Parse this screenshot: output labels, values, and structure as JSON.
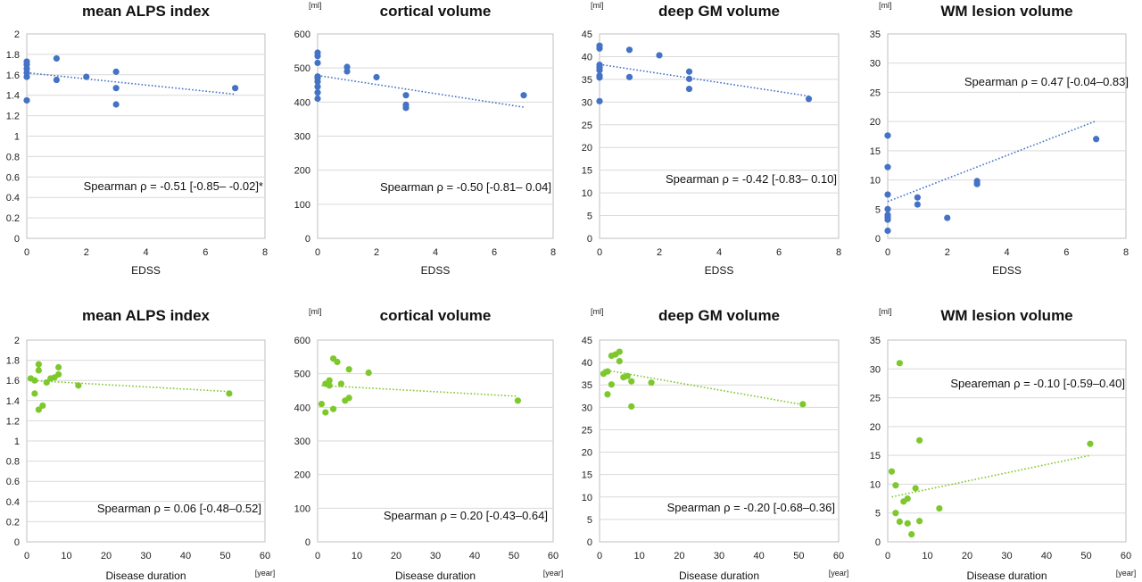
{
  "colors": {
    "edss": "#4472C4",
    "duration": "#7DC82C"
  },
  "chart_data": [
    {
      "type": "scatter",
      "title": "mean ALPS index",
      "unit": "",
      "xlabel": "EDSS",
      "xunit": "",
      "xlim": [
        0,
        8
      ],
      "xticks": [
        "0",
        "2",
        "4",
        "6",
        "8"
      ],
      "ylim": [
        0,
        2
      ],
      "yticks": [
        "0",
        "0.2",
        "0.4",
        "0.6",
        "0.8",
        "1",
        "1.2",
        "1.4",
        "1.6",
        "1.8",
        "2"
      ],
      "annotation": "Spearman ρ = -0.51 [-0.85– -0.02]*",
      "color": "edss",
      "x": [
        0,
        0,
        0,
        0,
        0,
        0,
        1,
        1,
        2,
        3,
        3,
        3,
        7
      ],
      "y": [
        1.35,
        1.58,
        1.62,
        1.66,
        1.7,
        1.73,
        1.55,
        1.76,
        1.58,
        1.31,
        1.47,
        1.63,
        1.47
      ],
      "trend": [
        [
          0,
          1.62
        ],
        [
          7,
          1.41
        ]
      ]
    },
    {
      "type": "scatter",
      "title": "cortical volume",
      "unit": "[ml]",
      "xlabel": "EDSS",
      "xunit": "",
      "xlim": [
        0,
        8
      ],
      "xticks": [
        "0",
        "2",
        "4",
        "6",
        "8"
      ],
      "ylim": [
        0,
        600
      ],
      "yticks": [
        "0",
        "100",
        "200",
        "300",
        "400",
        "500",
        "600"
      ],
      "annotation": "Spearman ρ = -0.50 [-0.81– 0.04]",
      "color": "edss",
      "x": [
        0,
        0,
        0,
        0,
        0,
        0,
        0,
        0,
        0,
        1,
        1,
        2,
        3,
        3,
        3,
        7
      ],
      "y": [
        410,
        428,
        445,
        460,
        470,
        475,
        515,
        535,
        545,
        490,
        503,
        473,
        420,
        392,
        383,
        420
      ],
      "trend": [
        [
          0,
          478
        ],
        [
          7,
          385
        ]
      ]
    },
    {
      "type": "scatter",
      "title": "deep GM volume",
      "unit": "[ml]",
      "xlabel": "EDSS",
      "xunit": "",
      "xlim": [
        0,
        8
      ],
      "xticks": [
        "0",
        "2",
        "4",
        "6",
        "8"
      ],
      "ylim": [
        0,
        45
      ],
      "yticks": [
        "0",
        "5",
        "10",
        "15",
        "20",
        "25",
        "30",
        "35",
        "40",
        "45"
      ],
      "annotation": "Spearman ρ = -0.42 [-0.83– 0.10]",
      "color": "edss",
      "x": [
        0,
        0,
        0,
        0,
        0,
        0,
        0,
        0,
        1,
        1,
        2,
        3,
        3,
        3,
        7
      ],
      "y": [
        30.2,
        35.4,
        35.8,
        37.0,
        37.6,
        38.2,
        41.8,
        42.4,
        35.5,
        41.5,
        40.3,
        32.9,
        35.1,
        36.7,
        30.7
      ],
      "trend": [
        [
          0,
          38.3
        ],
        [
          7,
          31.3
        ]
      ]
    },
    {
      "type": "scatter",
      "title": "WM lesion volume",
      "unit": "[ml]",
      "xlabel": "EDSS",
      "xunit": "",
      "xlim": [
        0,
        8
      ],
      "xticks": [
        "0",
        "2",
        "4",
        "6",
        "8"
      ],
      "ylim": [
        0,
        35
      ],
      "yticks": [
        "0",
        "5",
        "10",
        "15",
        "20",
        "25",
        "30",
        "35"
      ],
      "annotation": "Spearman ρ = 0.47 [-0.04–0.83]",
      "color": "edss",
      "x": [
        0,
        0,
        0,
        0,
        0,
        0,
        0,
        0,
        1,
        1,
        2,
        3,
        3,
        7
      ],
      "y": [
        1.3,
        3.2,
        3.6,
        4.0,
        5.0,
        7.5,
        12.2,
        17.6,
        5.8,
        7.0,
        3.5,
        9.3,
        9.8,
        17.0
      ],
      "trend": [
        [
          0,
          6.3
        ],
        [
          7,
          20.1
        ]
      ]
    },
    {
      "type": "scatter",
      "title": "mean ALPS index",
      "unit": "",
      "xlabel": "Disease duration",
      "xunit": "[year]",
      "xlim": [
        0,
        60
      ],
      "xticks": [
        "0",
        "10",
        "20",
        "30",
        "40",
        "50",
        "60"
      ],
      "ylim": [
        0,
        2
      ],
      "yticks": [
        "0",
        "0.2",
        "0.4",
        "0.6",
        "0.8",
        "1",
        "1.2",
        "1.4",
        "1.6",
        "1.8",
        "2"
      ],
      "annotation": "Spearman ρ = 0.06 [-0.48–0.52]",
      "color": "duration",
      "x": [
        1,
        2,
        2,
        3,
        3,
        3,
        4,
        5,
        6,
        7,
        8,
        8,
        13,
        51
      ],
      "y": [
        1.62,
        1.47,
        1.6,
        1.31,
        1.7,
        1.76,
        1.35,
        1.58,
        1.62,
        1.63,
        1.66,
        1.73,
        1.55,
        1.47
      ],
      "trend": [
        [
          1,
          1.6
        ],
        [
          51,
          1.49
        ]
      ]
    },
    {
      "type": "scatter",
      "title": "cortical volume",
      "unit": "[ml]",
      "xlabel": "Disease duration",
      "xunit": "[year]",
      "xlim": [
        0,
        60
      ],
      "xticks": [
        "0",
        "10",
        "20",
        "30",
        "40",
        "50",
        "60"
      ],
      "ylim": [
        0,
        600
      ],
      "yticks": [
        "0",
        "100",
        "200",
        "300",
        "400",
        "500",
        "600"
      ],
      "annotation": "Spearman ρ = 0.20 [-0.43–0.64]",
      "color": "duration",
      "x": [
        1,
        2,
        2,
        3,
        3,
        4,
        4,
        5,
        6,
        7,
        8,
        8,
        13,
        51
      ],
      "y": [
        410,
        385,
        470,
        465,
        480,
        395,
        545,
        535,
        470,
        420,
        428,
        513,
        503,
        420
      ],
      "trend": [
        [
          1,
          465
        ],
        [
          51,
          433
        ]
      ]
    },
    {
      "type": "scatter",
      "title": "deep GM volume",
      "unit": "[ml]",
      "xlabel": "Disease duration",
      "xunit": "[year]",
      "xlim": [
        0,
        60
      ],
      "xticks": [
        "0",
        "10",
        "20",
        "30",
        "40",
        "50",
        "60"
      ],
      "ylim": [
        0,
        45
      ],
      "yticks": [
        "0",
        "5",
        "10",
        "15",
        "20",
        "25",
        "30",
        "35",
        "40",
        "45"
      ],
      "annotation": "Spearman ρ = -0.20 [-0.68–0.36]",
      "color": "duration",
      "x": [
        1,
        2,
        2,
        3,
        3,
        4,
        5,
        5,
        6,
        7,
        8,
        8,
        13,
        51
      ],
      "y": [
        37.5,
        32.9,
        38.0,
        35.1,
        41.5,
        41.8,
        42.4,
        40.3,
        36.7,
        37.0,
        30.2,
        35.8,
        35.5,
        30.7
      ],
      "trend": [
        [
          1,
          38.4
        ],
        [
          51,
          30.6
        ]
      ]
    },
    {
      "type": "scatter",
      "title": "WM lesion volume",
      "unit": "[ml]",
      "xlabel": "Disease duration",
      "xunit": "[year]",
      "xlim": [
        0,
        60
      ],
      "xticks": [
        "0",
        "10",
        "20",
        "30",
        "40",
        "50",
        "60"
      ],
      "ylim": [
        0,
        35
      ],
      "yticks": [
        "0",
        "5",
        "10",
        "15",
        "20",
        "25",
        "30",
        "35"
      ],
      "annotation": "Speareman ρ = -0.10 [-0.59–0.40]",
      "color": "duration",
      "x": [
        1,
        2,
        2,
        3,
        3,
        4,
        5,
        5,
        6,
        7,
        8,
        8,
        13,
        51
      ],
      "y": [
        12.2,
        5.0,
        9.8,
        3.5,
        31.0,
        7.0,
        3.2,
        7.5,
        1.3,
        9.3,
        3.6,
        17.6,
        5.8,
        17.0
      ],
      "trend": [
        [
          1,
          7.8
        ],
        [
          51,
          15.0
        ]
      ]
    }
  ]
}
